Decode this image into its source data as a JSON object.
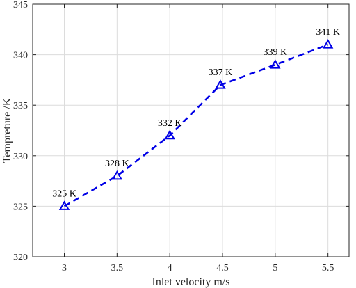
{
  "chart_data": {
    "type": "line",
    "title": "",
    "xlabel": "Inlet velocity m/s",
    "ylabel": "Tempreture /K",
    "xlim": [
      2.7,
      5.7
    ],
    "ylim": [
      320,
      345
    ],
    "xticks": [
      3,
      3.5,
      4,
      4.5,
      5,
      5.5
    ],
    "xtick_labels": [
      "3",
      "3.5",
      "4",
      "4.5",
      "5",
      "5.5"
    ],
    "yticks": [
      320,
      325,
      330,
      335,
      340,
      345
    ],
    "ytick_labels": [
      "320",
      "325",
      "330",
      "335",
      "340",
      "345"
    ],
    "grid": true,
    "series": [
      {
        "x": [
          3,
          3.5,
          4,
          4.48,
          5,
          5.5
        ],
        "y": [
          325,
          328,
          332,
          337,
          339,
          341
        ],
        "data_labels": [
          "325 K",
          "328 K",
          "332 K",
          "337 K",
          "339 K",
          "341 K"
        ],
        "color": "#0000e6",
        "line_style": "dashed",
        "marker": "triangle-up"
      }
    ]
  }
}
